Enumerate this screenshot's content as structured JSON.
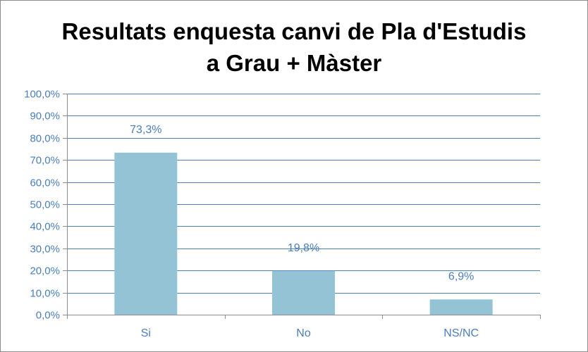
{
  "chart_data": {
    "type": "bar",
    "title_lines": [
      "Resultats enquesta canvi de Pla d'Estudis",
      "a Grau + Màster"
    ],
    "categories": [
      "Si",
      "No",
      "NS/NC"
    ],
    "values": [
      73.3,
      19.8,
      6.9
    ],
    "data_labels": [
      "73,3%",
      "19,8%",
      "6,9%"
    ],
    "ylim": [
      0,
      100
    ],
    "y_ticks": [
      0,
      10,
      20,
      30,
      40,
      50,
      60,
      70,
      80,
      90,
      100
    ],
    "y_tick_labels": [
      "0,0%",
      "10,0%",
      "20,0%",
      "30,0%",
      "40,0%",
      "50,0%",
      "60,0%",
      "70,0%",
      "80,0%",
      "90,0%",
      "100,0%"
    ],
    "xlabel": "",
    "ylabel": "",
    "grid": true,
    "legend": "none",
    "colors": {
      "bar": "#94c3d6",
      "grid": "#4a7ebb",
      "axis": "#8c8c8c",
      "labels": "#4a7ebb"
    }
  }
}
